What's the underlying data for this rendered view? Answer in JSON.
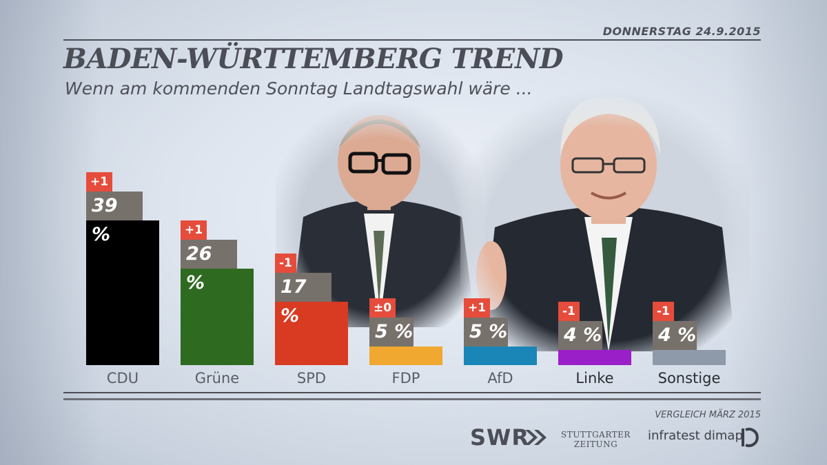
{
  "header": {
    "date": "DONNERSTAG  24.9.2015",
    "title": "BADEN-WÜRTTEMBERG TREND",
    "subtitle": "Wenn am kommenden Sonntag Landtagswahl wäre ..."
  },
  "chart_data": {
    "type": "bar",
    "categories": [
      "CDU",
      "Grüne",
      "SPD",
      "FDP",
      "AfD",
      "Linke",
      "Sonstige"
    ],
    "values": [
      39,
      26,
      17,
      5,
      5,
      4,
      4
    ],
    "value_labels": [
      "39 %",
      "26 %",
      "17 %",
      "5 %",
      "5 %",
      "4 %",
      "4 %"
    ],
    "changes": [
      "+1",
      "+1",
      "-1",
      "±0",
      "+1",
      "-1",
      "-1"
    ],
    "colors": [
      "#000000",
      "#2e6b20",
      "#d93a22",
      "#f0a830",
      "#1a86b8",
      "#9b1fc8",
      "#8e9aaa"
    ],
    "ylim": [
      0,
      39
    ],
    "title": "BADEN-WÜRTTEMBERG TREND"
  },
  "footer": {
    "source": "VERGLEICH MÄRZ 2015",
    "logo_swr": "SWR",
    "logo_sz_line1": "STUTTGARTER",
    "logo_sz_line2": "ZEITUNG",
    "logo_infratest": "infratest dimap"
  }
}
